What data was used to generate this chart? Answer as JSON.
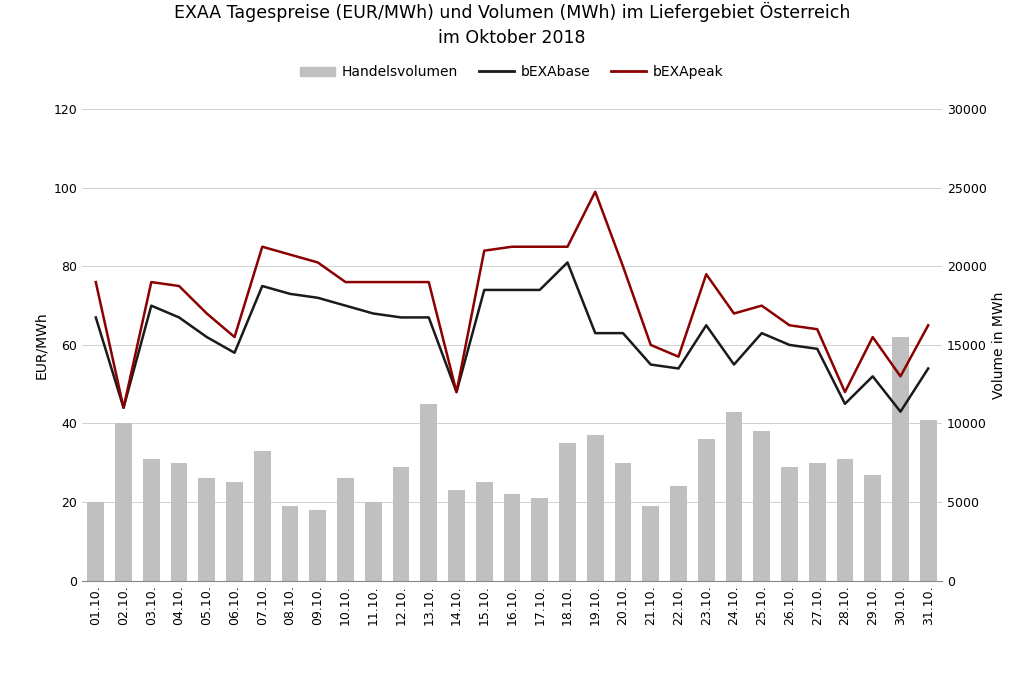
{
  "title": "EXAA Tagespreise (EUR/MWh) und Volumen (MWh) im Liefergebiet Österreich\nim Oktober 2018",
  "dates": [
    "01.10.",
    "02.10.",
    "03.10.",
    "04.10.",
    "05.10.",
    "06.10.",
    "07.10.",
    "08.10.",
    "09.10.",
    "10.10.",
    "11.10.",
    "12.10.",
    "13.10.",
    "14.10.",
    "15.10.",
    "16.10.",
    "17.10.",
    "18.10.",
    "19.10.",
    "20.10.",
    "21.10.",
    "22.10.",
    "23.10.",
    "24.10.",
    "25.10.",
    "26.10.",
    "27.10.",
    "28.10.",
    "29.10.",
    "30.10.",
    "31.10."
  ],
  "bEXAbase": [
    67,
    44,
    70,
    67,
    62,
    58,
    75,
    73,
    72,
    70,
    68,
    67,
    67,
    48,
    74,
    74,
    74,
    81,
    63,
    63,
    55,
    54,
    65,
    55,
    63,
    60,
    59,
    45,
    52,
    43,
    54
  ],
  "bEXApeak": [
    76,
    44,
    76,
    75,
    68,
    62,
    85,
    83,
    81,
    76,
    76,
    76,
    76,
    48,
    84,
    85,
    85,
    85,
    99,
    80,
    60,
    57,
    78,
    68,
    70,
    65,
    64,
    48,
    62,
    52,
    65
  ],
  "volume_left_scale": [
    20,
    40,
    31,
    30,
    26,
    25,
    33,
    19,
    18,
    26,
    20,
    29,
    45,
    23,
    25,
    22,
    21,
    35,
    37,
    30,
    19,
    24,
    36,
    43,
    38,
    29,
    30,
    31,
    27,
    62,
    41
  ],
  "ylabel_left": "EUR/MWh",
  "ylabel_right": "Volume in MWh",
  "ylim_left": [
    0,
    120
  ],
  "ylim_right": [
    0,
    30000
  ],
  "yticks_left": [
    0,
    20,
    40,
    60,
    80,
    100,
    120
  ],
  "yticks_right": [
    0,
    5000,
    10000,
    15000,
    20000,
    25000,
    30000
  ],
  "legend_handelsvolumen": "Handelsvolumen",
  "legend_base": "bEXAbase",
  "legend_peak": "bEXApeak",
  "bar_color": "#c0c0c0",
  "base_color": "#1a1a1a",
  "peak_color": "#8b0000",
  "background_color": "#ffffff",
  "title_fontsize": 12.5,
  "axis_fontsize": 10,
  "tick_fontsize": 9,
  "grid_color": "#d0d0d0"
}
